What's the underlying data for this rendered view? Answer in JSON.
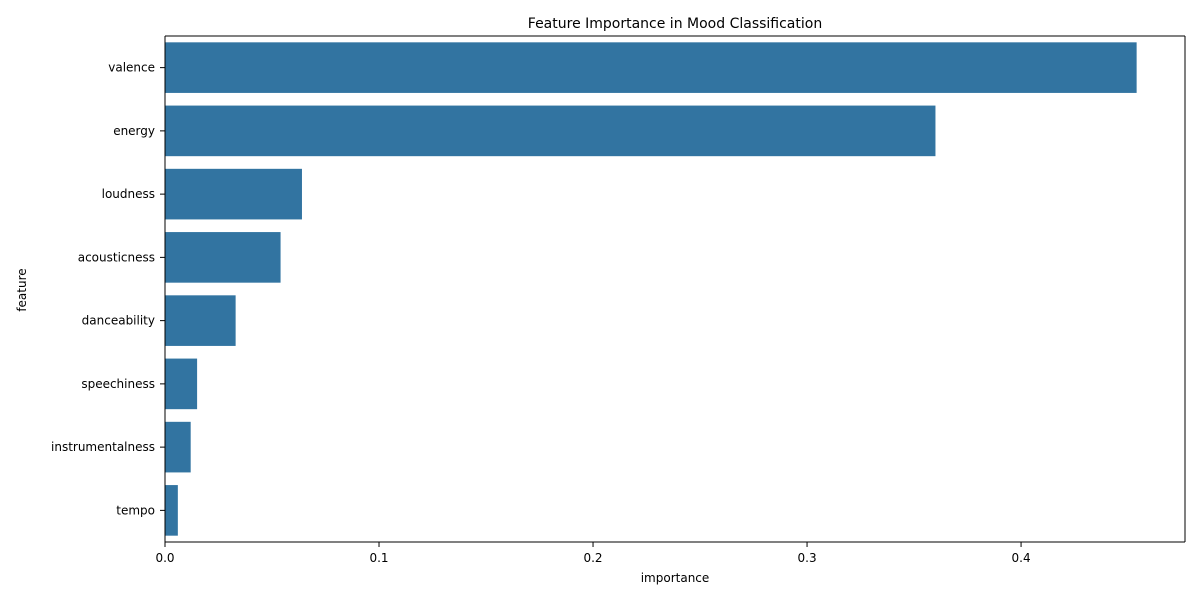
{
  "chart_data": {
    "type": "bar",
    "orientation": "horizontal",
    "title": "Feature Importance in Mood Classification",
    "xlabel": "importance",
    "ylabel": "feature",
    "categories": [
      "valence",
      "energy",
      "loudness",
      "acousticness",
      "danceability",
      "speechiness",
      "instrumentalness",
      "tempo"
    ],
    "values": [
      0.454,
      0.36,
      0.064,
      0.054,
      0.033,
      0.015,
      0.012,
      0.006
    ],
    "xlim": [
      0,
      0.4766
    ],
    "xticks": [
      0.0,
      0.1,
      0.2,
      0.3,
      0.4
    ],
    "xtick_labels": [
      "0.0",
      "0.1",
      "0.2",
      "0.3",
      "0.4"
    ],
    "bar_color": "#3274a1",
    "grid": false,
    "legend": "none"
  }
}
